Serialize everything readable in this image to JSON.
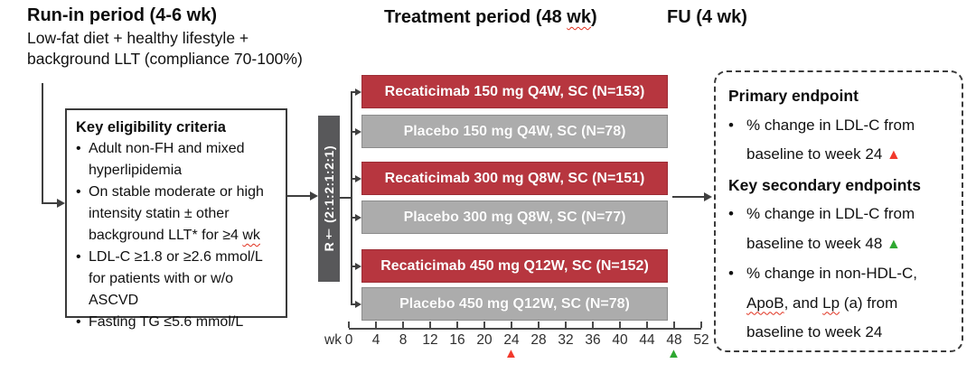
{
  "header": {
    "run_in_title": "Run-in period (4-6 wk)",
    "run_in_subtitle_line1": "Low-fat diet + healthy lifestyle +",
    "run_in_subtitle_line2": "background LLT (compliance 70-100%)",
    "treatment_title_prefix": "Treatment period (48 ",
    "treatment_title_wk": "wk",
    "treatment_title_suffix": ")",
    "fu_title": "FU (4 wk)"
  },
  "eligibility": {
    "title": "Key eligibility criteria",
    "bullets": [
      {
        "text": "Adult non-FH and mixed hyperlipidemia"
      },
      {
        "prefix": "On stable moderate or high intensity statin ± other background LLT* for ≥4 ",
        "squiggle": "wk"
      },
      {
        "text": "LDL-C ≥1.8 or ≥2.6 mmol/L for patients with or w/o ASCVD"
      },
      {
        "text": "Fasting TG ≤5.6 mmol/L"
      }
    ]
  },
  "randomization": {
    "label": "R† (2:1:2:1:2:1)"
  },
  "arms": [
    {
      "label": "Recaticimab 150 mg Q4W, SC (N=153)",
      "type": "active"
    },
    {
      "label": "Placebo 150 mg Q4W, SC (N=78)",
      "type": "placebo"
    },
    {
      "label": "Recaticimab 300 mg Q8W, SC (N=151)",
      "type": "active"
    },
    {
      "label": "Placebo 300 mg Q8W, SC (N=77)",
      "type": "placebo"
    },
    {
      "label": "Recaticimab 450 mg Q12W, SC (N=152)",
      "type": "active"
    },
    {
      "label": "Placebo 450 mg Q12W, SC (N=78)",
      "type": "placebo"
    }
  ],
  "axis": {
    "unit_label": "wk",
    "tick_labels": [
      "0",
      "4",
      "8",
      "12",
      "16",
      "20",
      "24",
      "28",
      "32",
      "36",
      "40",
      "44",
      "48",
      "52"
    ],
    "markers": [
      {
        "at_week": "24",
        "symbol": "▲",
        "color": "#f2392c"
      },
      {
        "at_week": "48",
        "symbol": "▲",
        "color": "#2fa831"
      }
    ]
  },
  "endpoints": {
    "primary_heading": "Primary endpoint",
    "primary_bullet": "% change in LDL-C from baseline to week 24",
    "primary_marker": "▲",
    "secondary_heading": "Key secondary endpoints",
    "secondary_bullet_1": "% change in LDL-C from baseline to week 48",
    "secondary_marker": "▲",
    "secondary_bullet_2_parts": {
      "p1": "% change in non-HDL-C, ",
      "w1": "ApoB",
      "p2": ", and ",
      "w2": "Lp",
      "p3": " (a) from baseline to week 24"
    }
  },
  "colors": {
    "active_arm": "#b7363f",
    "placebo_arm": "#acacac",
    "randomization_box": "#58585a",
    "primary_marker": "#f2392c",
    "secondary_marker": "#2fa831"
  }
}
